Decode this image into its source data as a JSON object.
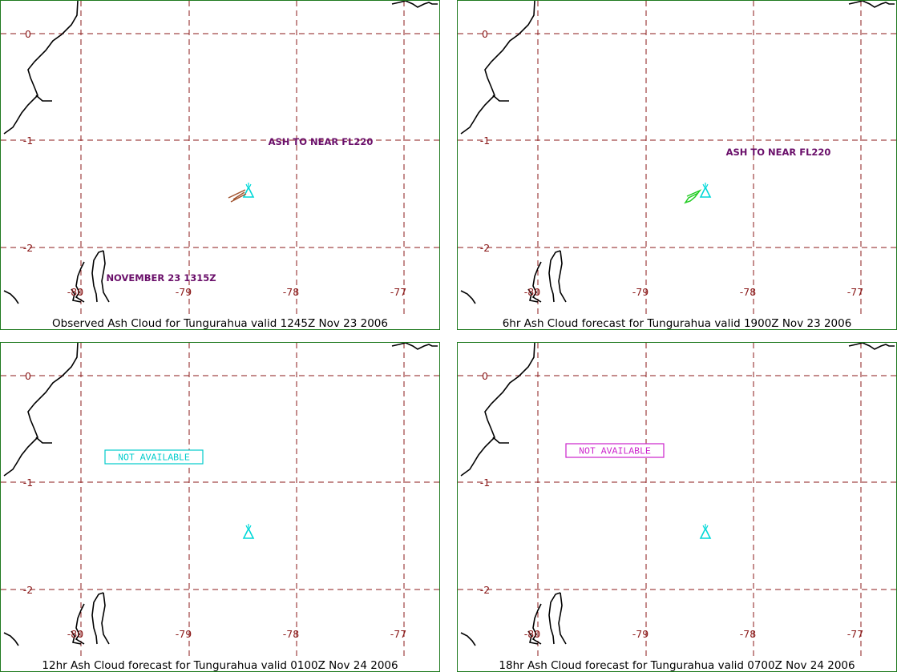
{
  "colors": {
    "border": "#1f7a1f",
    "grid": "#8b1a1a",
    "coastline": "#000000",
    "annotation": "#6a0f6a",
    "volcano": "#00d8d8",
    "observed_ash": "#a0522d",
    "forecast_ash": "#22cc22",
    "na_cyan": "#00cccc",
    "na_magenta": "#cc22cc"
  },
  "axis": {
    "longitudes": [
      "-80",
      "-79",
      "-78",
      "-77"
    ],
    "latitudes": [
      "0",
      "-1",
      "-2"
    ]
  },
  "volcano_icon": "volcano-triangle-icon",
  "panels": [
    {
      "id": "p1",
      "caption": "Observed Ash Cloud for Tungurahua valid 1245Z Nov 23 2006",
      "height_annotation": "ASH TO NEAR FL220",
      "date_annotation": "NOVEMBER 23 1315Z",
      "ash": "observed"
    },
    {
      "id": "p2",
      "caption": "6hr Ash Cloud forecast for Tungurahua valid 1900Z Nov 23 2006",
      "height_annotation": "ASH TO NEAR FL220",
      "ash": "forecast"
    },
    {
      "id": "p3",
      "caption": "12hr Ash Cloud forecast for Tungurahua valid 0100Z Nov 24 2006",
      "status": "NOT AVAILABLE",
      "status_color": "cyan"
    },
    {
      "id": "p4",
      "caption": "18hr Ash Cloud forecast for Tungurahua valid 0700Z Nov 24 2006",
      "status": "NOT AVAILABLE",
      "status_color": "magenta"
    }
  ]
}
